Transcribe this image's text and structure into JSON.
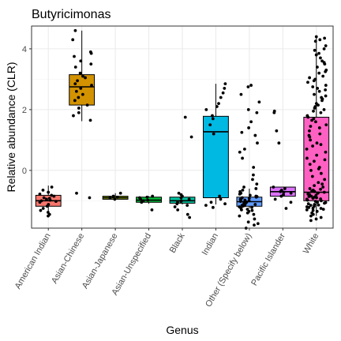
{
  "chart_data": {
    "type": "box",
    "title": "Butyricimonas",
    "xlabel": "Genus",
    "ylabel": "Relative abundance (CLR)",
    "ylim": [
      -1.9,
      4.75
    ],
    "yticks": [
      0,
      2,
      4
    ],
    "grid": true,
    "legend": "none",
    "categories": [
      "American Indian",
      "Asian-Chinese",
      "Asian-Japanese",
      "Asian-Unspecified",
      "Black",
      "Indian",
      "Other (Specify below)",
      "Pacific Islander",
      "White"
    ],
    "colors": [
      "#F8766D",
      "#D39200",
      "#93AA00",
      "#00BA38",
      "#00C19F",
      "#00B9E3",
      "#619CFF",
      "#DB72FB",
      "#FF61C3"
    ],
    "boxes": [
      {
        "category": "American Indian",
        "q1": -1.18,
        "median": -1.0,
        "q3": -0.82,
        "whisker_low": -1.48,
        "whisker_high": -0.5
      },
      {
        "category": "Asian-Chinese",
        "q1": 2.15,
        "median": 2.75,
        "q3": 3.15,
        "whisker_low": 1.62,
        "whisker_high": 4.6
      },
      {
        "category": "Asian-Japanese",
        "q1": -0.95,
        "median": -0.9,
        "q3": -0.85,
        "whisker_low": -0.95,
        "whisker_high": -0.75
      },
      {
        "category": "Asian-Unspecified",
        "q1": -1.05,
        "median": -0.98,
        "q3": -0.88,
        "whisker_low": -1.1,
        "whisker_high": -0.85
      },
      {
        "category": "Black",
        "q1": -1.08,
        "median": -1.0,
        "q3": -0.88,
        "whisker_low": -1.12,
        "whisker_high": -0.8
      },
      {
        "category": "Indian",
        "q1": -0.9,
        "median": 1.27,
        "q3": 1.78,
        "whisker_low": -1.12,
        "whisker_high": 2.85
      },
      {
        "category": "Other (Specify below)",
        "q1": -1.18,
        "median": -1.03,
        "q3": -0.88,
        "whisker_low": -1.25,
        "whisker_high": -0.6
      },
      {
        "category": "Pacific Islander",
        "q1": -0.85,
        "median": -0.7,
        "q3": -0.55,
        "whisker_low": -0.85,
        "whisker_high": -0.55
      },
      {
        "category": "White",
        "q1": -1.0,
        "median": -0.72,
        "q3": 1.75,
        "whisker_low": -1.5,
        "whisker_high": 4.4
      }
    ],
    "points": [
      {
        "category": "American Indian",
        "y": [
          -1.5,
          -1.45,
          -1.32,
          -1.25,
          -1.18,
          -1.12,
          -1.05,
          -1.02,
          -0.98,
          -0.95,
          -0.9,
          -0.85,
          -0.82,
          -0.78,
          -0.72,
          -0.65,
          -0.55,
          -1.0,
          -0.92,
          -1.38
        ]
      },
      {
        "category": "Asian-Chinese",
        "y": [
          4.6,
          4.3,
          3.9,
          3.85,
          3.75,
          3.6,
          3.5,
          3.4,
          3.2,
          3.1,
          3.05,
          2.95,
          2.85,
          2.8,
          2.7,
          2.6,
          2.5,
          2.4,
          2.3,
          2.15,
          2.05,
          1.9,
          1.8,
          1.65,
          -0.75,
          -0.9
        ]
      },
      {
        "category": "Asian-Japanese",
        "y": [
          -0.95,
          -0.9,
          -0.88,
          -0.85,
          -0.75
        ]
      },
      {
        "category": "Asian-Unspecified",
        "y": [
          -1.3,
          -1.05,
          -1.0,
          -0.98,
          -0.95,
          -0.9,
          -0.88,
          -0.85
        ]
      },
      {
        "category": "Black",
        "y": [
          1.75,
          1.1,
          -0.75,
          -0.8,
          -0.85,
          -0.9,
          -0.95,
          -1.0,
          -1.02,
          -1.05,
          -1.1,
          -1.15,
          -1.2,
          -1.3,
          -1.45,
          -1.55
        ]
      },
      {
        "category": "Indian",
        "y": [
          2.85,
          2.7,
          2.55,
          2.4,
          2.2,
          2.1,
          2.0,
          1.8,
          1.7,
          1.5,
          1.2,
          -0.85,
          -0.95,
          -1.05,
          -1.1,
          -1.15,
          -1.22
        ]
      },
      {
        "category": "Other (Specify below)",
        "y": [
          2.8,
          2.75,
          2.5,
          2.25,
          2.0,
          1.9,
          1.6,
          1.4,
          1.25,
          1.15,
          0.9,
          0.7,
          0.6,
          0.4,
          0.1,
          -0.15,
          -0.3,
          -0.45,
          -0.55,
          -0.6,
          -0.65,
          -0.7,
          -0.75,
          -0.78,
          -0.82,
          -0.85,
          -0.88,
          -0.9,
          -0.92,
          -0.95,
          -0.98,
          -1.0,
          -1.02,
          -1.05,
          -1.08,
          -1.1,
          -1.12,
          -1.15,
          -1.18,
          -1.2,
          -1.22,
          -1.25,
          -1.28,
          -1.3,
          -1.35,
          -1.4,
          -1.5,
          -1.6,
          -1.7,
          -1.8,
          -1.9,
          -1.75,
          -1.45,
          -1.32,
          -1.16,
          -1.04,
          -0.96,
          -0.86
        ]
      },
      {
        "category": "Pacific Islander",
        "y": [
          1.95,
          1.9,
          1.3,
          0.9,
          -0.55,
          -0.6,
          -0.65,
          -0.7,
          -0.72,
          -0.75,
          -0.8,
          -0.85,
          -0.95,
          -1.05,
          -1.25
        ]
      },
      {
        "category": "White",
        "y": [
          4.4,
          4.35,
          4.3,
          4.25,
          4.1,
          4.0,
          3.95,
          3.8,
          3.7,
          3.6,
          3.5,
          3.4,
          3.3,
          3.2,
          3.1,
          3.0,
          2.9,
          2.8,
          2.7,
          2.6,
          2.5,
          2.4,
          2.3,
          2.2,
          2.1,
          2.0,
          1.9,
          1.8,
          1.7,
          1.6,
          1.5,
          1.4,
          1.3,
          1.2,
          1.1,
          1.0,
          0.9,
          0.8,
          0.7,
          0.6,
          0.5,
          0.4,
          0.3,
          0.2,
          0.1,
          0.0,
          -0.1,
          -0.2,
          -0.3,
          -0.4,
          -0.5,
          -0.55,
          -0.6,
          -0.65,
          -0.7,
          -0.72,
          -0.75,
          -0.78,
          -0.8,
          -0.82,
          -0.85,
          -0.88,
          -0.9,
          -0.92,
          -0.95,
          -0.98,
          -1.0,
          -1.02,
          -1.05,
          -1.08,
          -1.1,
          -1.12,
          -1.15,
          -1.18,
          -1.2,
          -1.22,
          -1.25,
          -1.28,
          -1.3,
          -1.35,
          -1.4,
          -1.45,
          -1.5,
          -1.55,
          -1.6,
          -1.65,
          3.85,
          3.55,
          3.25,
          2.95,
          2.65,
          2.35,
          2.05,
          1.75,
          1.45,
          1.15,
          0.85,
          2.15,
          2.45,
          1.65,
          1.95,
          2.75,
          3.05,
          0.35,
          0.05,
          -0.45,
          -0.62,
          -0.68,
          -0.74,
          -0.86,
          -0.94,
          -1.06,
          -1.14,
          -1.24,
          -1.32
        ]
      }
    ]
  }
}
